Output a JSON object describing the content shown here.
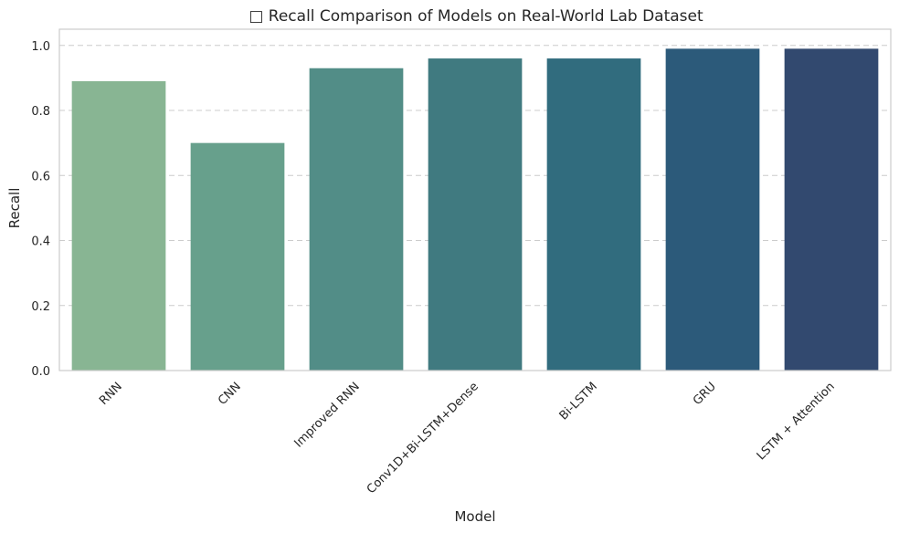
{
  "chart_data": {
    "type": "bar",
    "title": "□ Recall Comparison of Models on Real-World Lab Dataset",
    "xlabel": "Model",
    "ylabel": "Recall",
    "categories": [
      "RNN",
      "CNN",
      "Improved RNN",
      "Conv1D+Bi-LSTM+Dense",
      "Bi-LSTM",
      "GRU",
      "LSTM + Attention"
    ],
    "values": [
      0.89,
      0.7,
      0.93,
      0.96,
      0.96,
      0.99,
      0.99
    ],
    "colors": [
      "#88b593",
      "#67a08c",
      "#528d87",
      "#407a80",
      "#316c7e",
      "#2c5a7a",
      "#32496f"
    ],
    "ylim": [
      0,
      1.05
    ],
    "yticks": [
      0.0,
      0.2,
      0.4,
      0.6,
      0.8,
      1.0
    ],
    "ytick_labels": [
      "0.0",
      "0.2",
      "0.4",
      "0.6",
      "0.8",
      "1.0"
    ],
    "grid": "y-dashed",
    "legend": "none"
  }
}
